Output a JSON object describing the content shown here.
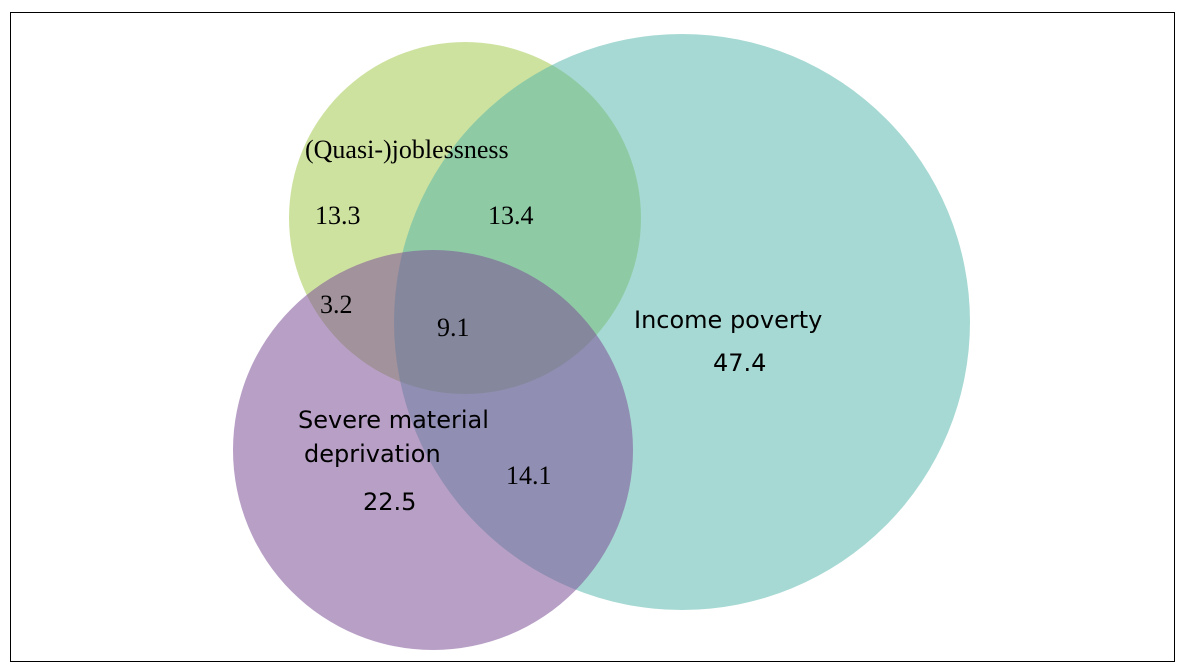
{
  "diagram": {
    "type": "venn",
    "sets": [
      {
        "id": "jobless",
        "label": "(Quasi-)joblessness",
        "color": "#9dc23c"
      },
      {
        "id": "income",
        "label": "Income poverty",
        "color": "#4fb3a6"
      },
      {
        "id": "deprivation",
        "label_line1": "Severe material",
        "label_line2": "deprivation",
        "color": "#7b4f97"
      }
    ],
    "regions": {
      "jobless_only": "13.3",
      "jobless_income": "13.4",
      "jobless_deprivation": "3.2",
      "all_three": "9.1",
      "income_only": "47.4",
      "income_deprivation": "14.1",
      "deprivation_only": "22.5"
    }
  }
}
